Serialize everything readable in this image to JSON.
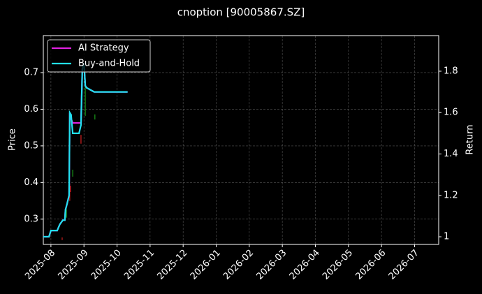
{
  "chart_data": {
    "type": "candlestick",
    "title": "cnoption [90005867.SZ]",
    "ylabel": "Price",
    "y2label": "Return",
    "xlim": [
      -0.23,
      11.73
    ],
    "xticks": [
      {
        "value": 0,
        "label": "2025-08"
      },
      {
        "value": 1,
        "label": "2025-09"
      },
      {
        "value": 2,
        "label": "2025-10"
      },
      {
        "value": 3,
        "label": "2025-11"
      },
      {
        "value": 4,
        "label": "2025-12"
      },
      {
        "value": 5,
        "label": "2026-01"
      },
      {
        "value": 6,
        "label": "2026-02"
      },
      {
        "value": 7,
        "label": "2026-03"
      },
      {
        "value": 8,
        "label": "2026-04"
      },
      {
        "value": 9,
        "label": "2026-05"
      },
      {
        "value": 10,
        "label": "2026-06"
      },
      {
        "value": 11,
        "label": "2026-07"
      }
    ],
    "ylim": [
      0.231,
      0.801
    ],
    "yticks": [
      0.3,
      0.4,
      0.5,
      0.6,
      0.7
    ],
    "y2lim": [
      0.963,
      1.972
    ],
    "y2ticks": [
      1.0,
      1.2,
      1.4,
      1.6,
      1.8
    ],
    "grid": true,
    "legend": "upper left",
    "ohlc": {
      "x": [
        -0.04,
        0.34,
        0.47,
        0.57,
        0.59,
        0.66,
        0.91,
        1.04,
        1.33
      ],
      "open": [
        0.256,
        0.25,
        0.304,
        0.397,
        0.391,
        0.416,
        0.53,
        0.582,
        0.572
      ],
      "close": [
        0.25,
        0.243,
        0.327,
        0.35,
        0.374,
        0.435,
        0.506,
        0.679,
        0.586
      ],
      "up_color": "#1a9a1a",
      "down_color": "#d42020"
    },
    "series": [
      {
        "name": "AI Strategy",
        "color": "#e020e0",
        "axis": "y2",
        "x": [
          -0.23,
          -0.06,
          0.0,
          0.19,
          0.27,
          0.36,
          0.42,
          0.44,
          0.49,
          0.55,
          0.57,
          0.61,
          0.66,
          0.85,
          0.91,
          0.95,
          1.0,
          1.04,
          1.08,
          1.31,
          2.32
        ],
        "values": [
          1.0,
          1.0,
          1.03,
          1.03,
          1.06,
          1.08,
          1.08,
          1.13,
          1.16,
          1.2,
          1.6,
          1.57,
          1.55,
          1.55,
          1.55,
          1.81,
          1.84,
          1.73,
          1.72,
          1.7,
          1.7
        ]
      },
      {
        "name": "Buy-and-Hold",
        "color": "#22e0f0",
        "axis": "y2",
        "x": [
          -0.23,
          -0.06,
          0.0,
          0.19,
          0.27,
          0.36,
          0.42,
          0.44,
          0.49,
          0.55,
          0.57,
          0.61,
          0.66,
          0.85,
          0.91,
          0.95,
          1.0,
          1.04,
          1.08,
          1.31,
          2.32
        ],
        "values": [
          1.0,
          1.0,
          1.03,
          1.03,
          1.06,
          1.08,
          1.08,
          1.13,
          1.16,
          1.2,
          1.6,
          1.59,
          1.5,
          1.5,
          1.54,
          1.81,
          1.84,
          1.73,
          1.72,
          1.7,
          1.7
        ]
      }
    ]
  }
}
